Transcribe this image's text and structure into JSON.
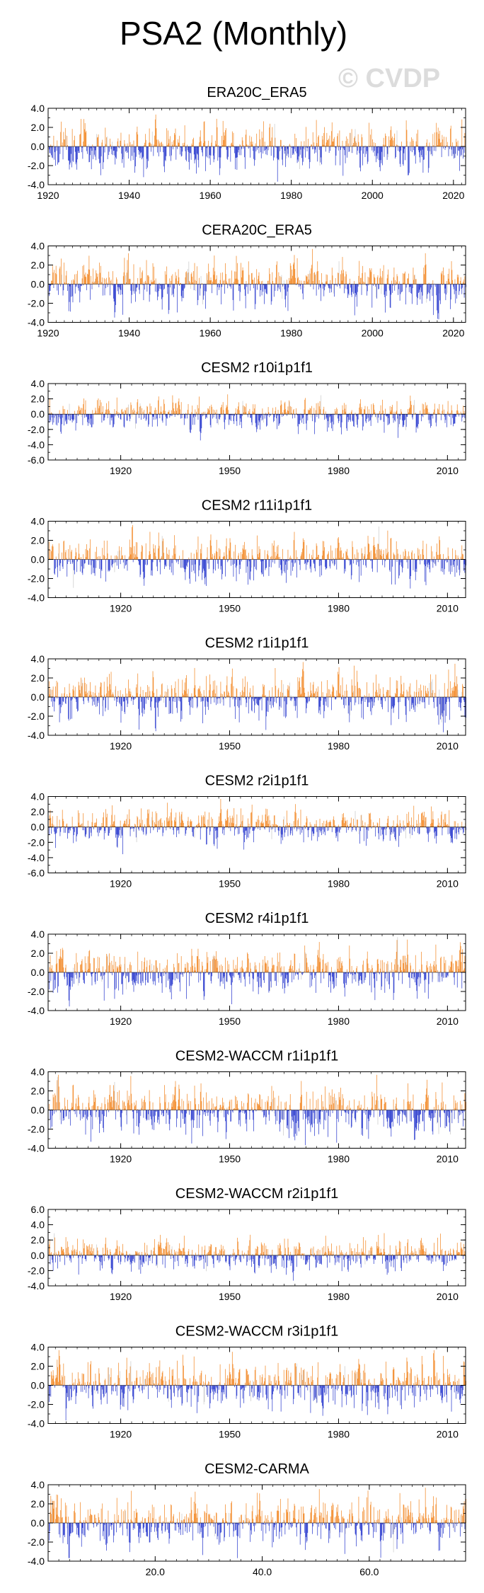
{
  "page": {
    "title": "PSA2 (Monthly)",
    "watermark": "© CVDP",
    "colors": {
      "positive": "#f2841e",
      "negative": "#2233cc",
      "gray": "#c8c8c8",
      "axis": "#000000"
    }
  },
  "chart_data": [
    {
      "type": "bar",
      "title": "ERA20C_ERA5",
      "xlim": [
        1920,
        2023
      ],
      "xticks": [
        1920,
        1940,
        1960,
        1980,
        2000,
        2020
      ],
      "xtick_labels": [
        "1920",
        "1940",
        "1960",
        "1980",
        "2000",
        "2020"
      ],
      "ylim": [
        -4,
        4
      ],
      "yticks": [
        -4,
        -2,
        0,
        2,
        4
      ],
      "ytick_labels": [
        "-4.0",
        "-2.0",
        "0.0",
        "2.0",
        "4.0"
      ],
      "seed": 11,
      "amp": 1.25
    },
    {
      "type": "bar",
      "title": "CERA20C_ERA5",
      "xlim": [
        1920,
        2023
      ],
      "xticks": [
        1920,
        1940,
        1960,
        1980,
        2000,
        2020
      ],
      "xtick_labels": [
        "1920",
        "1940",
        "1960",
        "1980",
        "2000",
        "2020"
      ],
      "ylim": [
        -4,
        4
      ],
      "yticks": [
        -4,
        -2,
        0,
        2,
        4
      ],
      "ytick_labels": [
        "-4.0",
        "-2.0",
        "0.0",
        "2.0",
        "4.0"
      ],
      "seed": 23,
      "amp": 1.25
    },
    {
      "type": "bar",
      "title": "CESM2 r10i1p1f1",
      "xlim": [
        1900,
        2015
      ],
      "xticks": [
        1920,
        1950,
        1980,
        2010
      ],
      "xtick_labels": [
        "1920",
        "1950",
        "1980",
        "2010"
      ],
      "ylim": [
        -6,
        4
      ],
      "yticks": [
        -6,
        -4,
        -2,
        0,
        2,
        4
      ],
      "ytick_labels": [
        "-6.0",
        "-4.0",
        "-2.0",
        "0.0",
        "2.0",
        "4.0"
      ],
      "seed": 37,
      "amp": 1.1
    },
    {
      "type": "bar",
      "title": "CESM2 r11i1p1f1",
      "xlim": [
        1900,
        2015
      ],
      "xticks": [
        1920,
        1950,
        1980,
        2010
      ],
      "xtick_labels": [
        "1920",
        "1950",
        "1980",
        "2010"
      ],
      "ylim": [
        -4,
        4
      ],
      "yticks": [
        -4,
        -2,
        0,
        2,
        4
      ],
      "ytick_labels": [
        "-4.0",
        "-2.0",
        "0.0",
        "2.0",
        "4.0"
      ],
      "seed": 41,
      "amp": 1.25
    },
    {
      "type": "bar",
      "title": "CESM2 r1i1p1f1",
      "xlim": [
        1900,
        2015
      ],
      "xticks": [
        1920,
        1950,
        1980,
        2010
      ],
      "xtick_labels": [
        "1920",
        "1950",
        "1980",
        "2010"
      ],
      "ylim": [
        -4,
        4
      ],
      "yticks": [
        -4,
        -2,
        0,
        2,
        4
      ],
      "ytick_labels": [
        "-4.0",
        "-2.0",
        "0.0",
        "2.0",
        "4.0"
      ],
      "seed": 53,
      "amp": 1.3
    },
    {
      "type": "bar",
      "title": "CESM2 r2i1p1f1",
      "xlim": [
        1900,
        2015
      ],
      "xticks": [
        1920,
        1950,
        1980,
        2010
      ],
      "xtick_labels": [
        "1920",
        "1950",
        "1980",
        "2010"
      ],
      "ylim": [
        -6,
        4
      ],
      "yticks": [
        -6,
        -4,
        -2,
        0,
        2,
        4
      ],
      "ytick_labels": [
        "-6.0",
        "-4.0",
        "-2.0",
        "0.0",
        "2.0",
        "4.0"
      ],
      "seed": 67,
      "amp": 1.1
    },
    {
      "type": "bar",
      "title": "CESM2 r4i1p1f1",
      "xlim": [
        1900,
        2015
      ],
      "xticks": [
        1920,
        1950,
        1980,
        2010
      ],
      "xtick_labels": [
        "1920",
        "1950",
        "1980",
        "2010"
      ],
      "ylim": [
        -4,
        4
      ],
      "yticks": [
        -4,
        -2,
        0,
        2,
        4
      ],
      "ytick_labels": [
        "-4.0",
        "-2.0",
        "0.0",
        "2.0",
        "4.0"
      ],
      "seed": 79,
      "amp": 1.3
    },
    {
      "type": "bar",
      "title": "CESM2-WACCM r1i1p1f1",
      "xlim": [
        1900,
        2015
      ],
      "xticks": [
        1920,
        1950,
        1980,
        2010
      ],
      "xtick_labels": [
        "1920",
        "1950",
        "1980",
        "2010"
      ],
      "ylim": [
        -4,
        4
      ],
      "yticks": [
        -4,
        -2,
        0,
        2,
        4
      ],
      "ytick_labels": [
        "-4.0",
        "-2.0",
        "0.0",
        "2.0",
        "4.0"
      ],
      "seed": 83,
      "amp": 1.25
    },
    {
      "type": "bar",
      "title": "CESM2-WACCM r2i1p1f1",
      "xlim": [
        1900,
        2015
      ],
      "xticks": [
        1920,
        1950,
        1980,
        2010
      ],
      "xtick_labels": [
        "1920",
        "1950",
        "1980",
        "2010"
      ],
      "ylim": [
        -4,
        6
      ],
      "yticks": [
        -4,
        -2,
        0,
        2,
        4,
        6
      ],
      "ytick_labels": [
        "-4.0",
        "-2.0",
        "0.0",
        "2.0",
        "4.0",
        "6.0"
      ],
      "seed": 97,
      "amp": 1.1
    },
    {
      "type": "bar",
      "title": "CESM2-WACCM r3i1p1f1",
      "xlim": [
        1900,
        2015
      ],
      "xticks": [
        1920,
        1950,
        1980,
        2010
      ],
      "xtick_labels": [
        "1920",
        "1950",
        "1980",
        "2010"
      ],
      "ylim": [
        -4,
        4
      ],
      "yticks": [
        -4,
        -2,
        0,
        2,
        4
      ],
      "ytick_labels": [
        "-4.0",
        "-2.0",
        "0.0",
        "2.0",
        "4.0"
      ],
      "seed": 101,
      "amp": 1.3
    },
    {
      "type": "bar",
      "title": "CESM2-CARMA",
      "xlim": [
        0,
        78
      ],
      "xticks": [
        20,
        40,
        60
      ],
      "xtick_labels": [
        "20.0",
        "40.0",
        "60.0"
      ],
      "ylim": [
        -4,
        4
      ],
      "yticks": [
        -4,
        -2,
        0,
        2,
        4
      ],
      "ytick_labels": [
        "-4.0",
        "-2.0",
        "0.0",
        "2.0",
        "4.0"
      ],
      "seed": 113,
      "amp": 1.3
    }
  ]
}
